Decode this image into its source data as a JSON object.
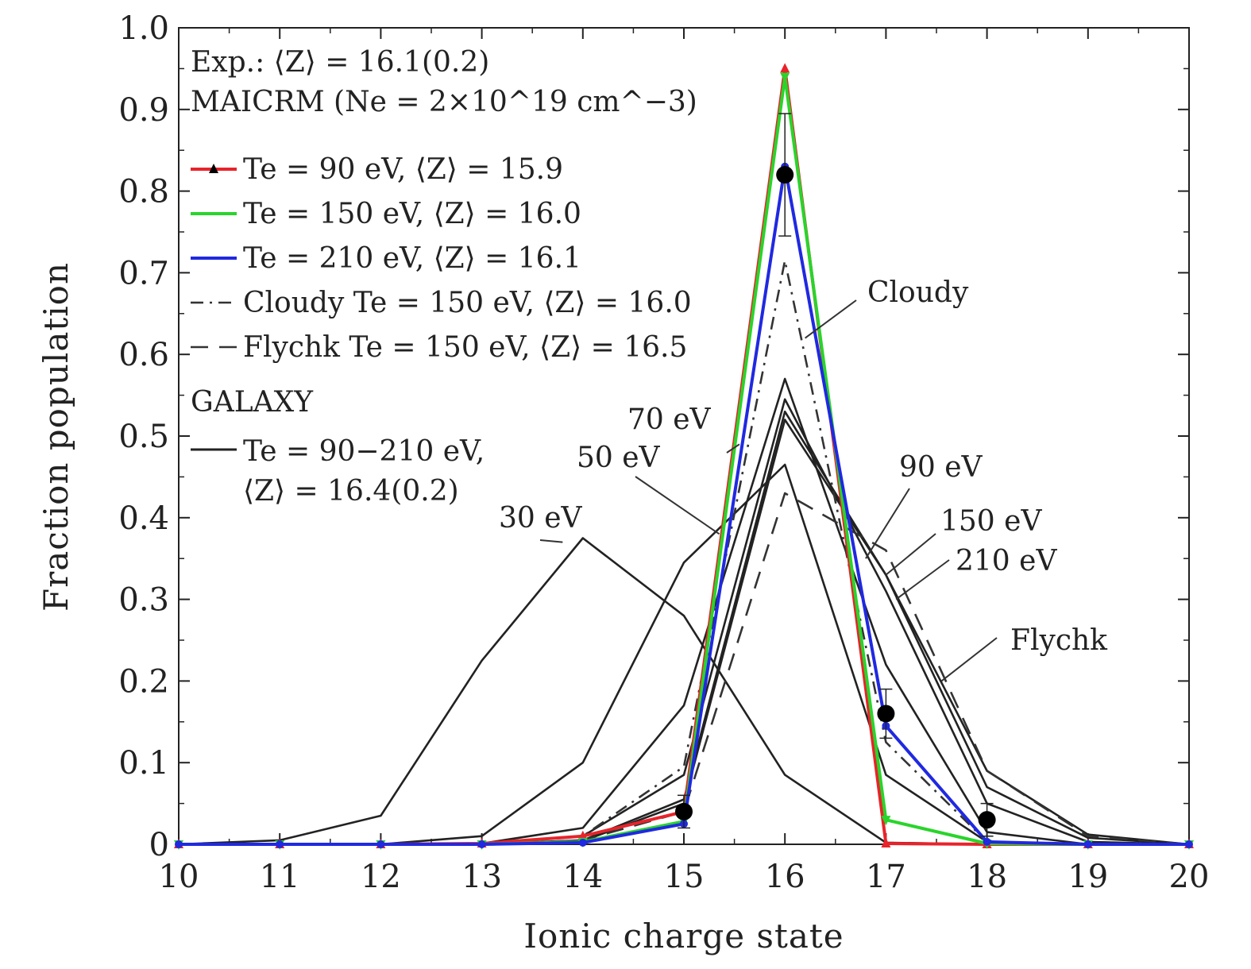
{
  "chart_data": {
    "type": "line",
    "xlabel": "Ionic charge state",
    "ylabel": "Fraction population",
    "xlim": [
      10,
      20
    ],
    "ylim": [
      0,
      1.0
    ],
    "x_ticks": [
      10,
      11,
      12,
      13,
      14,
      15,
      16,
      17,
      18,
      19,
      20
    ],
    "y_ticks": [
      0,
      0.1,
      0.2,
      0.3,
      0.4,
      0.5,
      0.6,
      0.7,
      0.8,
      0.9,
      1.0
    ],
    "y_tick_labels": [
      "0",
      "0.1",
      "0.2",
      "0.3",
      "0.4",
      "0.5",
      "0.6",
      "0.7",
      "0.8",
      "0.9",
      "1.0"
    ],
    "grid": false,
    "legend": {
      "placement": "top-left",
      "header_lines": [
        "Exp.: ⟨Z⟩ = 16.1(0.2)",
        "MAICRM (Ne = 2×10^19 cm^−3)"
      ],
      "entries": [
        {
          "label": "Te = 90 eV, ⟨Z⟩ = 15.9",
          "color": "#e8232a",
          "style": "solid",
          "marker": "triangle-up"
        },
        {
          "label": "Te = 150 eV, ⟨Z⟩ = 16.0",
          "color": "#29d42b",
          "style": "solid",
          "marker": "triangle-down"
        },
        {
          "label": "Te = 210 eV, ⟨Z⟩ = 16.1",
          "color": "#2029e0",
          "style": "solid",
          "marker": "circle"
        },
        {
          "label": "Cloudy Te = 150 eV, ⟨Z⟩ = 16.0",
          "color": "#333333",
          "style": "dashdot",
          "marker": "none"
        },
        {
          "label": "Flychk Te = 150 eV, ⟨Z⟩ = 16.5",
          "color": "#333333",
          "style": "dashed",
          "marker": "none"
        }
      ],
      "galaxy_header": "GALAXY",
      "galaxy_entry": {
        "label_line1": "Te = 90−210 eV,",
        "label_line2": "⟨Z⟩ = 16.4(0.2)",
        "color": "#222222",
        "style": "solid"
      }
    },
    "series": [
      {
        "name": "Te = 90 eV, ⟨Z⟩ = 15.9",
        "color": "#e8232a",
        "style": "solid",
        "marker": "triangle-up",
        "x": [
          10,
          11,
          12,
          13,
          14,
          15,
          16,
          17,
          18,
          19,
          20
        ],
        "y": [
          0,
          0,
          0,
          0.001,
          0.01,
          0.04,
          0.95,
          0.001,
          0,
          0,
          0
        ]
      },
      {
        "name": "Te = 150 eV, ⟨Z⟩ = 16.0",
        "color": "#29d42b",
        "style": "solid",
        "marker": "triangle-down",
        "x": [
          10,
          11,
          12,
          13,
          14,
          15,
          16,
          17,
          18,
          19,
          20
        ],
        "y": [
          0,
          0,
          0,
          0,
          0.003,
          0.028,
          0.94,
          0.03,
          0.001,
          0,
          0
        ]
      },
      {
        "name": "Te = 210 eV, ⟨Z⟩ = 16.1",
        "color": "#2029e0",
        "style": "solid",
        "marker": "circle",
        "x": [
          10,
          11,
          12,
          13,
          14,
          15,
          16,
          17,
          18,
          19,
          20
        ],
        "y": [
          0,
          0,
          0,
          0,
          0.002,
          0.025,
          0.83,
          0.145,
          0.003,
          0,
          0
        ]
      },
      {
        "name": "Cloudy Te = 150 eV, ⟨Z⟩ = 16.0",
        "color": "#333333",
        "style": "dashdot",
        "marker": "none",
        "x": [
          10,
          11,
          12,
          13,
          14,
          15,
          16,
          17,
          18,
          19,
          20
        ],
        "y": [
          0,
          0,
          0,
          0,
          0.01,
          0.095,
          0.715,
          0.125,
          0.003,
          0,
          0
        ]
      },
      {
        "name": "Flychk Te = 150 eV, ⟨Z⟩ = 16.5",
        "color": "#333333",
        "style": "dashed",
        "marker": "none",
        "x": [
          10,
          11,
          12,
          13,
          14,
          15,
          16,
          17,
          18,
          19,
          20
        ],
        "y": [
          0,
          0,
          0,
          0,
          0.005,
          0.04,
          0.43,
          0.36,
          0.09,
          0.01,
          0
        ]
      },
      {
        "name": "30 eV",
        "color": "#222222",
        "style": "solid",
        "marker": "none",
        "x": [
          10,
          11,
          12,
          13,
          14,
          15,
          16,
          17,
          18,
          19,
          20
        ],
        "y": [
          0,
          0.005,
          0.035,
          0.225,
          0.375,
          0.28,
          0.085,
          0.002,
          0,
          0,
          0
        ]
      },
      {
        "name": "50 eV",
        "color": "#222222",
        "style": "solid",
        "marker": "none",
        "x": [
          10,
          11,
          12,
          13,
          14,
          15,
          16,
          17,
          18,
          19,
          20
        ],
        "y": [
          0,
          0,
          0,
          0.01,
          0.1,
          0.345,
          0.465,
          0.085,
          0.003,
          0,
          0
        ]
      },
      {
        "name": "70 eV",
        "color": "#222222",
        "style": "solid",
        "marker": "none",
        "x": [
          10,
          11,
          12,
          13,
          14,
          15,
          16,
          17,
          18,
          19,
          20
        ],
        "y": [
          0,
          0,
          0,
          0.001,
          0.02,
          0.17,
          0.57,
          0.22,
          0.015,
          0,
          0
        ]
      },
      {
        "name": "90 eV",
        "color": "#222222",
        "style": "solid",
        "marker": "none",
        "x": [
          10,
          11,
          12,
          13,
          14,
          15,
          16,
          17,
          18,
          19,
          20
        ],
        "y": [
          0,
          0,
          0,
          0,
          0.01,
          0.085,
          0.545,
          0.31,
          0.05,
          0.003,
          0
        ]
      },
      {
        "name": "150 eV",
        "color": "#222222",
        "style": "solid",
        "marker": "none",
        "x": [
          10,
          11,
          12,
          13,
          14,
          15,
          16,
          17,
          18,
          19,
          20
        ],
        "y": [
          0,
          0,
          0,
          0,
          0.005,
          0.055,
          0.53,
          0.33,
          0.07,
          0.008,
          0
        ]
      },
      {
        "name": "210 eV",
        "color": "#222222",
        "style": "solid",
        "marker": "none",
        "x": [
          10,
          11,
          12,
          13,
          14,
          15,
          16,
          17,
          18,
          19,
          20
        ],
        "y": [
          0,
          0,
          0,
          0,
          0.004,
          0.05,
          0.52,
          0.33,
          0.09,
          0.012,
          0
        ]
      }
    ],
    "experiment": {
      "name": "Exp.",
      "marker": "filled-circle",
      "color": "#000000",
      "x": [
        15,
        16,
        17,
        18
      ],
      "y": [
        0.04,
        0.82,
        0.16,
        0.03
      ],
      "error": [
        0.02,
        0.075,
        0.03,
        0.02
      ]
    },
    "annotations": [
      {
        "text": "Cloudy",
        "target_series": "Cloudy Te = 150 eV, ⟨Z⟩ = 16.0",
        "x": 16.2,
        "y": 0.62
      },
      {
        "text": "70 eV",
        "target_series": "70 eV",
        "x": 15.55,
        "y": 0.49
      },
      {
        "text": "50 eV",
        "target_series": "50 eV",
        "x": 15.35,
        "y": 0.38
      },
      {
        "text": "30 eV",
        "target_series": "30 eV",
        "x": 13.8,
        "y": 0.37
      },
      {
        "text": "90 eV",
        "target_series": "90 eV",
        "x": 16.8,
        "y": 0.35
      },
      {
        "text": "150 eV",
        "target_series": "150 eV",
        "x": 17.0,
        "y": 0.33
      },
      {
        "text": "210 eV",
        "target_series": "210 eV",
        "x": 17.1,
        "y": 0.3
      },
      {
        "text": "Flychk",
        "target_series": "Flychk Te = 150 eV, ⟨Z⟩ = 16.5",
        "x": 17.55,
        "y": 0.2
      }
    ]
  }
}
